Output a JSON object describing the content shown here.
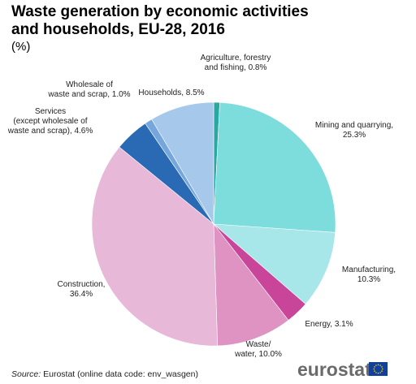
{
  "chart_data": {
    "type": "pie",
    "title_lines": [
      "Waste generation by economic activities",
      "and households, EU-28, 2016"
    ],
    "subtitle": "(%)",
    "unit": "%",
    "slices": [
      {
        "label_lines": [
          "Agriculture, forestry",
          "and fishing, 0.8%"
        ],
        "value": 0.8,
        "color": "#2aa7a0"
      },
      {
        "label_lines": [
          "Mining and quarrying,",
          "25.3%"
        ],
        "value": 25.3,
        "color": "#7ddcdc"
      },
      {
        "label_lines": [
          "Manufacturing,",
          "10.3%"
        ],
        "value": 10.3,
        "color": "#a8e7e9"
      },
      {
        "label_lines": [
          "Energy, 3.1%"
        ],
        "value": 3.1,
        "color": "#c8459a"
      },
      {
        "label_lines": [
          "Waste/",
          "water, 10.0%"
        ],
        "value": 10.0,
        "color": "#de93c2"
      },
      {
        "label_lines": [
          "Construction,",
          "36.4%"
        ],
        "value": 36.4,
        "color": "#e8b8d8"
      },
      {
        "label_lines": [
          "Services",
          "(except wholesale of",
          "waste and scrap), 4.6%"
        ],
        "value": 4.6,
        "color": "#2a6ab5"
      },
      {
        "label_lines": [
          "Wholesale of",
          "waste and scrap, 1.0%"
        ],
        "value": 1.0,
        "color": "#75a6dc"
      },
      {
        "label_lines": [
          "Households, 8.5%"
        ],
        "value": 8.5,
        "color": "#a6c8eb"
      }
    ]
  },
  "source": {
    "label": "Source:",
    "text": "Eurostat (online data code: env_wasgen)"
  },
  "logo": {
    "text": "eurostat"
  }
}
